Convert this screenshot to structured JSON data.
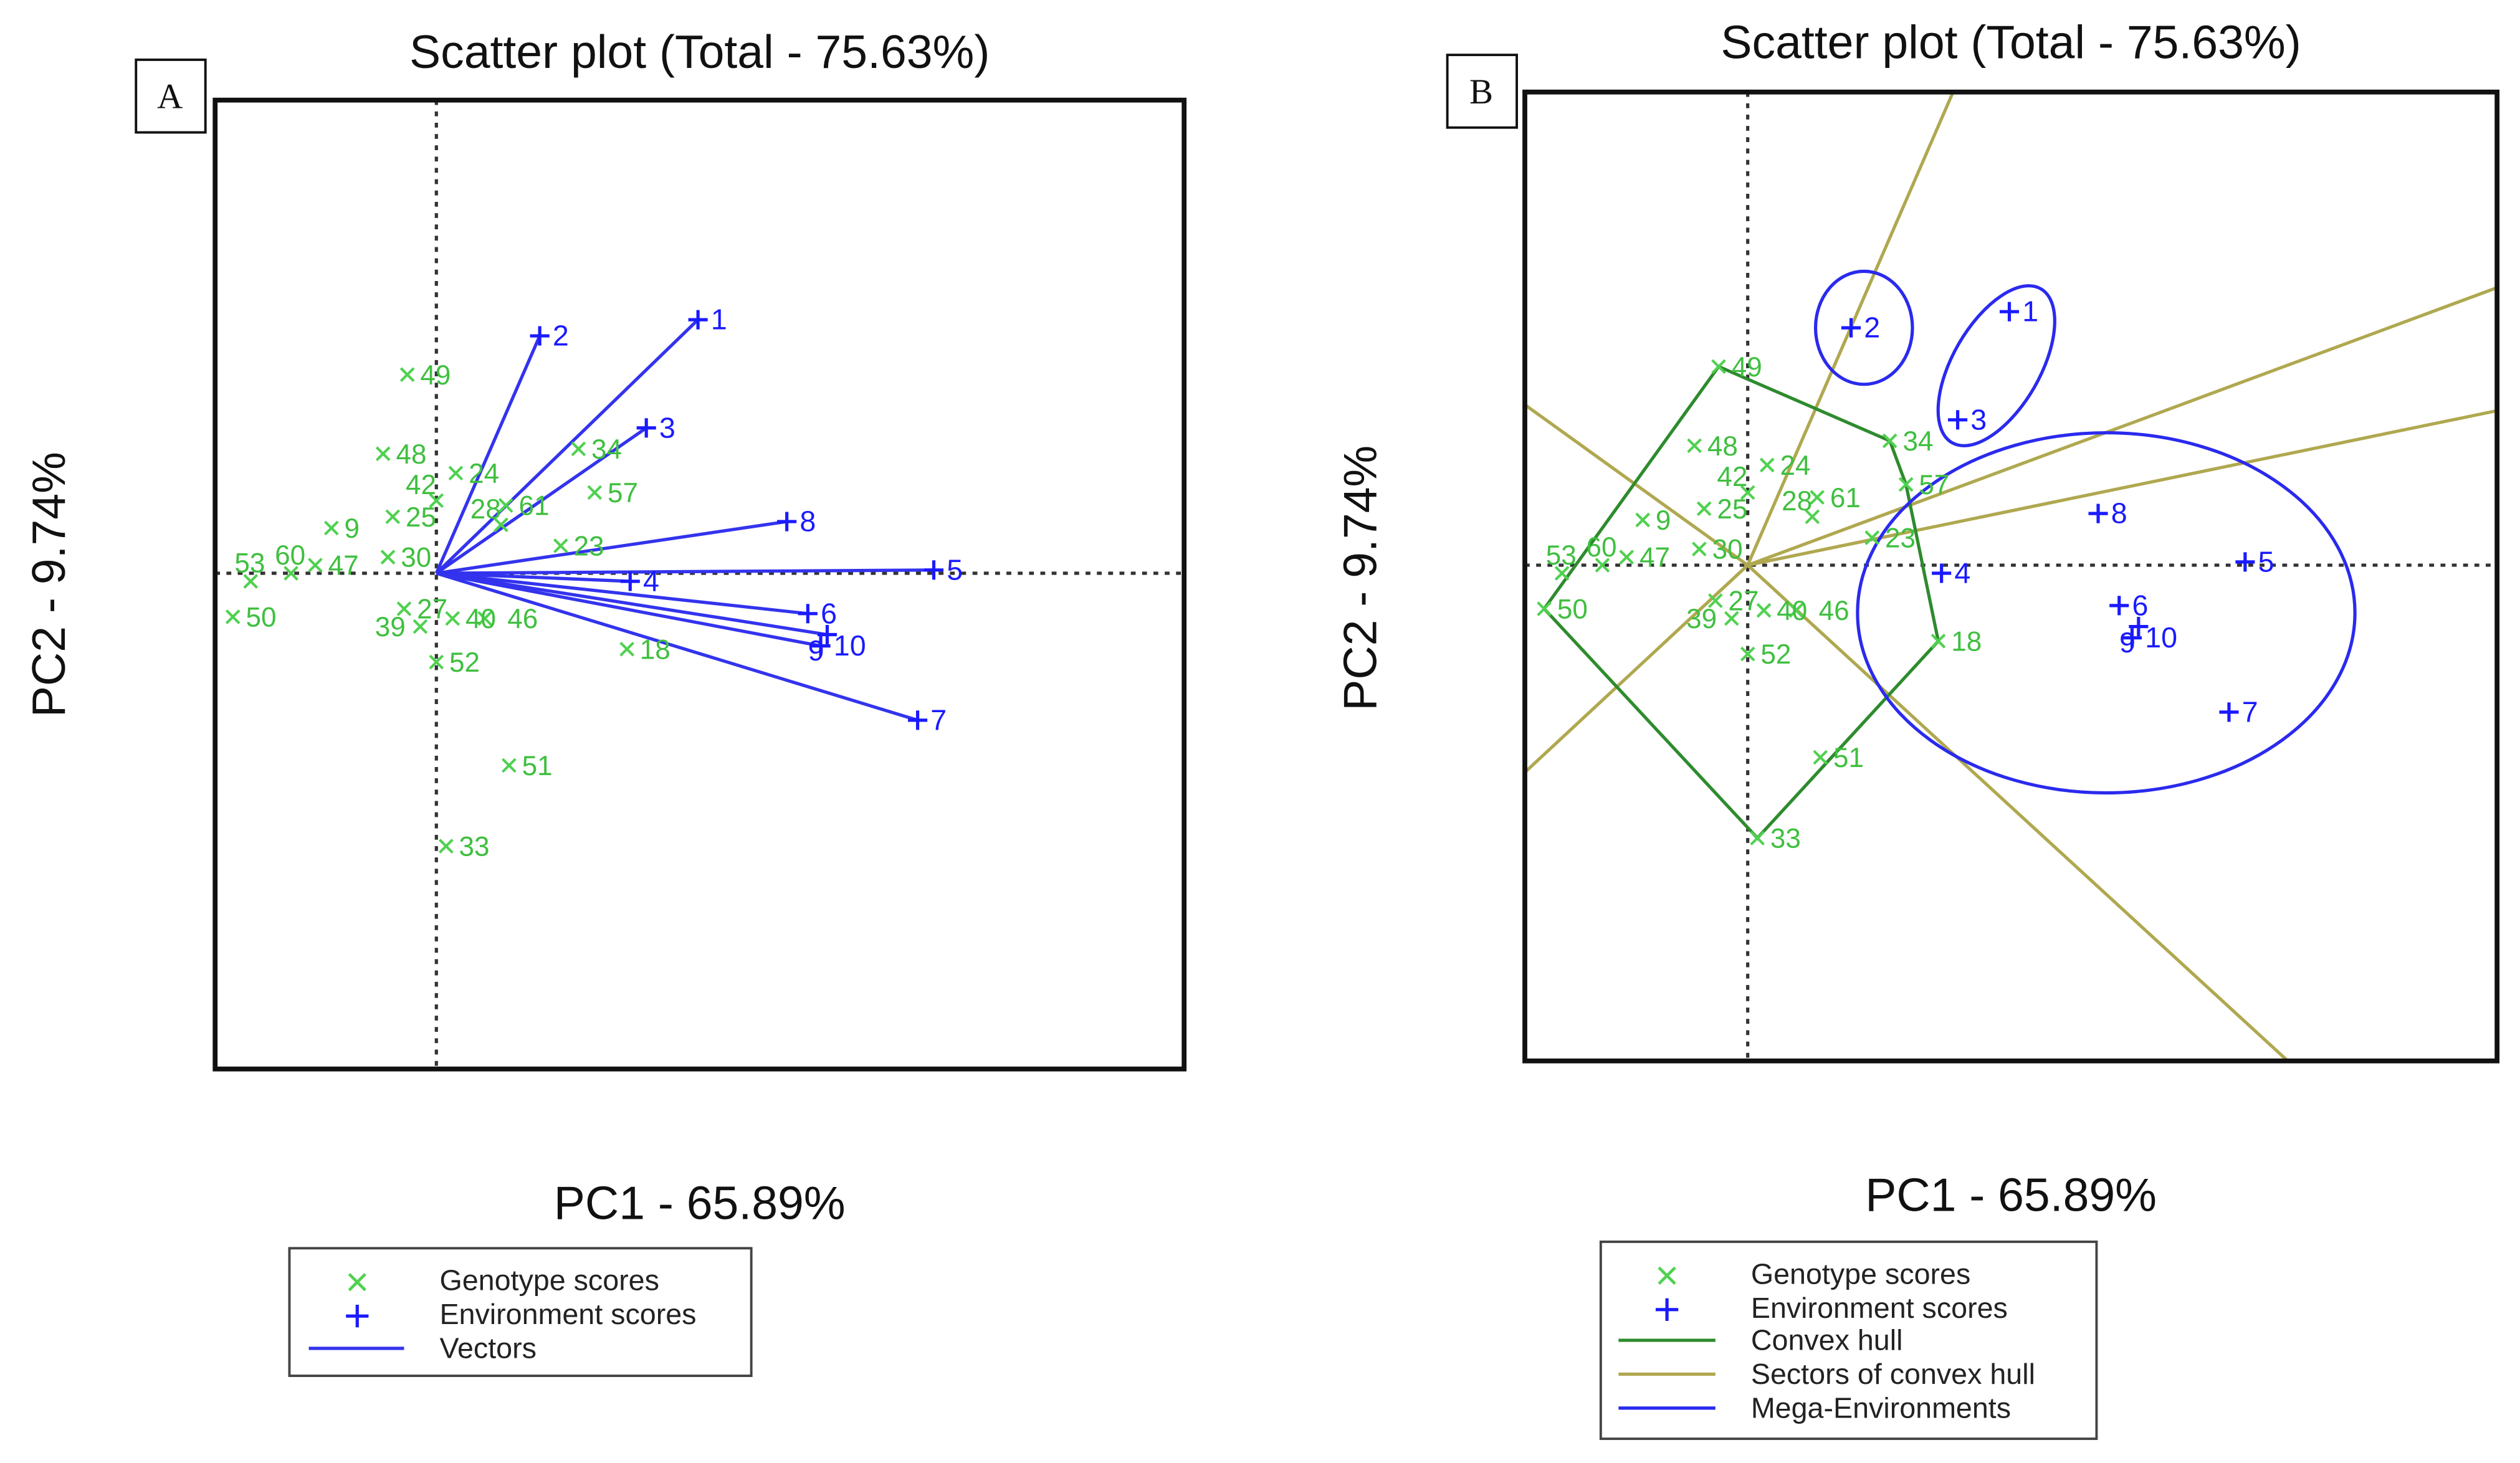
{
  "colors": {
    "genotype": "#4fd14f",
    "environment": "#1a1aff",
    "vector": "#3333ee",
    "convex_hull": "#2e8b2e",
    "sectors": "#b0a850",
    "mega_env": "#2a2aee",
    "origin_lines": "#333333"
  },
  "chart_data": [
    {
      "type": "scatter",
      "panel_tag": "A",
      "title": "Scatter plot (Total - 75.63%)",
      "xlabel": "PC1 - 65.89%",
      "ylabel": "PC2 - 9.74%",
      "xlim": [
        -1.37,
        4.63
      ],
      "ylim": [
        -3.07,
        2.93
      ],
      "grid": false,
      "origin_lines": true,
      "legend_position": "bottom",
      "legend": [
        "Genotype scores",
        "Environment scores",
        "Vectors"
      ],
      "genotypes": [
        {
          "label": "49",
          "x": -0.18,
          "y": 1.23
        },
        {
          "label": "48",
          "x": -0.33,
          "y": 0.74
        },
        {
          "label": "24",
          "x": 0.12,
          "y": 0.62
        },
        {
          "label": "42",
          "x": 0.0,
          "y": 0.45
        },
        {
          "label": "61",
          "x": 0.43,
          "y": 0.42
        },
        {
          "label": "25",
          "x": -0.27,
          "y": 0.35
        },
        {
          "label": "28",
          "x": 0.4,
          "y": 0.3
        },
        {
          "label": "34",
          "x": 0.88,
          "y": 0.77
        },
        {
          "label": "57",
          "x": 0.98,
          "y": 0.5
        },
        {
          "label": "9",
          "x": -0.65,
          "y": 0.28
        },
        {
          "label": "30",
          "x": -0.3,
          "y": 0.1
        },
        {
          "label": "23",
          "x": 0.77,
          "y": 0.17
        },
        {
          "label": "47",
          "x": -0.75,
          "y": 0.05
        },
        {
          "label": "60",
          "x": -0.9,
          "y": 0.0
        },
        {
          "label": "53",
          "x": -1.15,
          "y": -0.05
        },
        {
          "label": "50",
          "x": -1.26,
          "y": -0.27
        },
        {
          "label": "27",
          "x": -0.2,
          "y": -0.22
        },
        {
          "label": "39",
          "x": -0.1,
          "y": -0.33
        },
        {
          "label": "40",
          "x": 0.1,
          "y": -0.28
        },
        {
          "label": "46",
          "x": 0.3,
          "y": -0.28
        },
        {
          "label": "52",
          "x": 0.0,
          "y": -0.55
        },
        {
          "label": "18",
          "x": 1.18,
          "y": -0.47
        },
        {
          "label": "51",
          "x": 0.45,
          "y": -1.19
        },
        {
          "label": "33",
          "x": 0.06,
          "y": -1.69
        }
      ],
      "environments": [
        {
          "label": "1",
          "x": 1.62,
          "y": 1.57
        },
        {
          "label": "2",
          "x": 0.64,
          "y": 1.47
        },
        {
          "label": "3",
          "x": 1.3,
          "y": 0.9
        },
        {
          "label": "8",
          "x": 2.17,
          "y": 0.32
        },
        {
          "label": "5",
          "x": 3.08,
          "y": 0.02
        },
        {
          "label": "4",
          "x": 1.2,
          "y": -0.05
        },
        {
          "label": "6",
          "x": 2.3,
          "y": -0.25
        },
        {
          "label": "9",
          "x": 2.42,
          "y": -0.38
        },
        {
          "label": "10",
          "x": 2.38,
          "y": -0.45
        },
        {
          "label": "7",
          "x": 2.98,
          "y": -0.91
        }
      ],
      "vectors": true
    },
    {
      "type": "scatter",
      "panel_tag": "B",
      "title": "Scatter plot (Total - 75.63%)",
      "xlabel": "PC1 - 65.89%",
      "ylabel": "PC2 - 9.74%",
      "xlim": [
        -1.38,
        4.64
      ],
      "ylim": [
        -3.07,
        2.93
      ],
      "grid": false,
      "origin_lines": true,
      "legend_position": "bottom",
      "legend": [
        "Genotype scores",
        "Environment scores",
        "Convex hull",
        "Sectors of convex hull",
        "Mega-Environments"
      ],
      "same_points_as_panel": "A",
      "convex_hull": [
        "49",
        "34",
        "57",
        "18",
        "33",
        "50"
      ],
      "mega_environments": [
        [
          "2"
        ],
        [
          "1",
          "3"
        ],
        [
          "4",
          "5",
          "6",
          "7",
          "8",
          "9",
          "10"
        ]
      ]
    }
  ]
}
